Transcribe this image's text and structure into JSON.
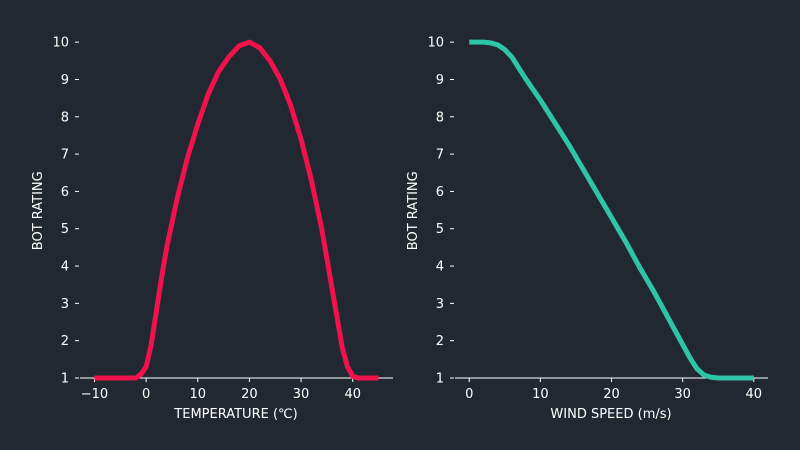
{
  "theme": {
    "background": "#222831",
    "axis_color": "#ffffff",
    "text_color": "#ffffff"
  },
  "chart_data": [
    {
      "type": "line",
      "title": "",
      "xlabel": "TEMPERATURE (℃)",
      "ylabel": "BOT RATING",
      "xlim": [
        -12.8,
        47.8
      ],
      "ylim": [
        1,
        10.5
      ],
      "xticks": [
        -10,
        0,
        10,
        20,
        30,
        40
      ],
      "xtick_labels": [
        "−10",
        "0",
        "10",
        "20",
        "30",
        "40"
      ],
      "yticks": [
        1,
        2,
        3,
        4,
        5,
        6,
        7,
        8,
        9,
        10
      ],
      "ytick_labels": [
        "1",
        "2",
        "3",
        "4",
        "5",
        "6",
        "7",
        "8",
        "9",
        "10"
      ],
      "grid": false,
      "legend": "none",
      "series": [
        {
          "color": "#f0124a",
          "x": [
            -10,
            -8,
            -6,
            -4,
            -2,
            -1,
            0,
            1,
            2,
            3,
            4,
            6,
            8,
            10,
            12,
            14,
            16,
            18,
            20,
            22,
            24,
            26,
            28,
            30,
            32,
            34,
            36,
            37,
            38,
            39,
            40,
            41,
            42,
            44,
            45
          ],
          "y": [
            1,
            1,
            1,
            1,
            1,
            1.1,
            1.3,
            1.9,
            2.8,
            3.7,
            4.5,
            5.8,
            6.9,
            7.8,
            8.6,
            9.2,
            9.6,
            9.9,
            10,
            9.85,
            9.5,
            9.0,
            8.3,
            7.4,
            6.3,
            5.0,
            3.4,
            2.6,
            1.8,
            1.3,
            1.05,
            1,
            1,
            1,
            1
          ]
        }
      ]
    },
    {
      "type": "line",
      "title": "",
      "xlabel": "WIND SPEED (m/s)",
      "ylabel": "BOT RATING",
      "xlim": [
        -2,
        42
      ],
      "ylim": [
        1,
        10.5
      ],
      "xticks": [
        0,
        10,
        20,
        30,
        40
      ],
      "xtick_labels": [
        "0",
        "10",
        "20",
        "30",
        "40"
      ],
      "yticks": [
        1,
        2,
        3,
        4,
        5,
        6,
        7,
        8,
        9,
        10
      ],
      "ytick_labels": [
        "1",
        "2",
        "3",
        "4",
        "5",
        "6",
        "7",
        "8",
        "9",
        "10"
      ],
      "grid": false,
      "legend": "none",
      "series": [
        {
          "color": "#2ec4a7",
          "x": [
            0,
            1,
            2,
            3,
            4,
            5,
            6,
            7,
            8,
            10,
            12,
            14,
            16,
            18,
            20,
            22,
            24,
            26,
            28,
            30,
            31,
            32,
            33,
            34,
            35,
            36,
            38,
            40
          ],
          "y": [
            10,
            10,
            10,
            9.98,
            9.93,
            9.8,
            9.6,
            9.3,
            9.0,
            8.45,
            7.85,
            7.25,
            6.6,
            5.95,
            5.3,
            4.65,
            3.95,
            3.3,
            2.6,
            1.9,
            1.55,
            1.25,
            1.08,
            1.02,
            1,
            1,
            1,
            1
          ]
        }
      ]
    }
  ]
}
